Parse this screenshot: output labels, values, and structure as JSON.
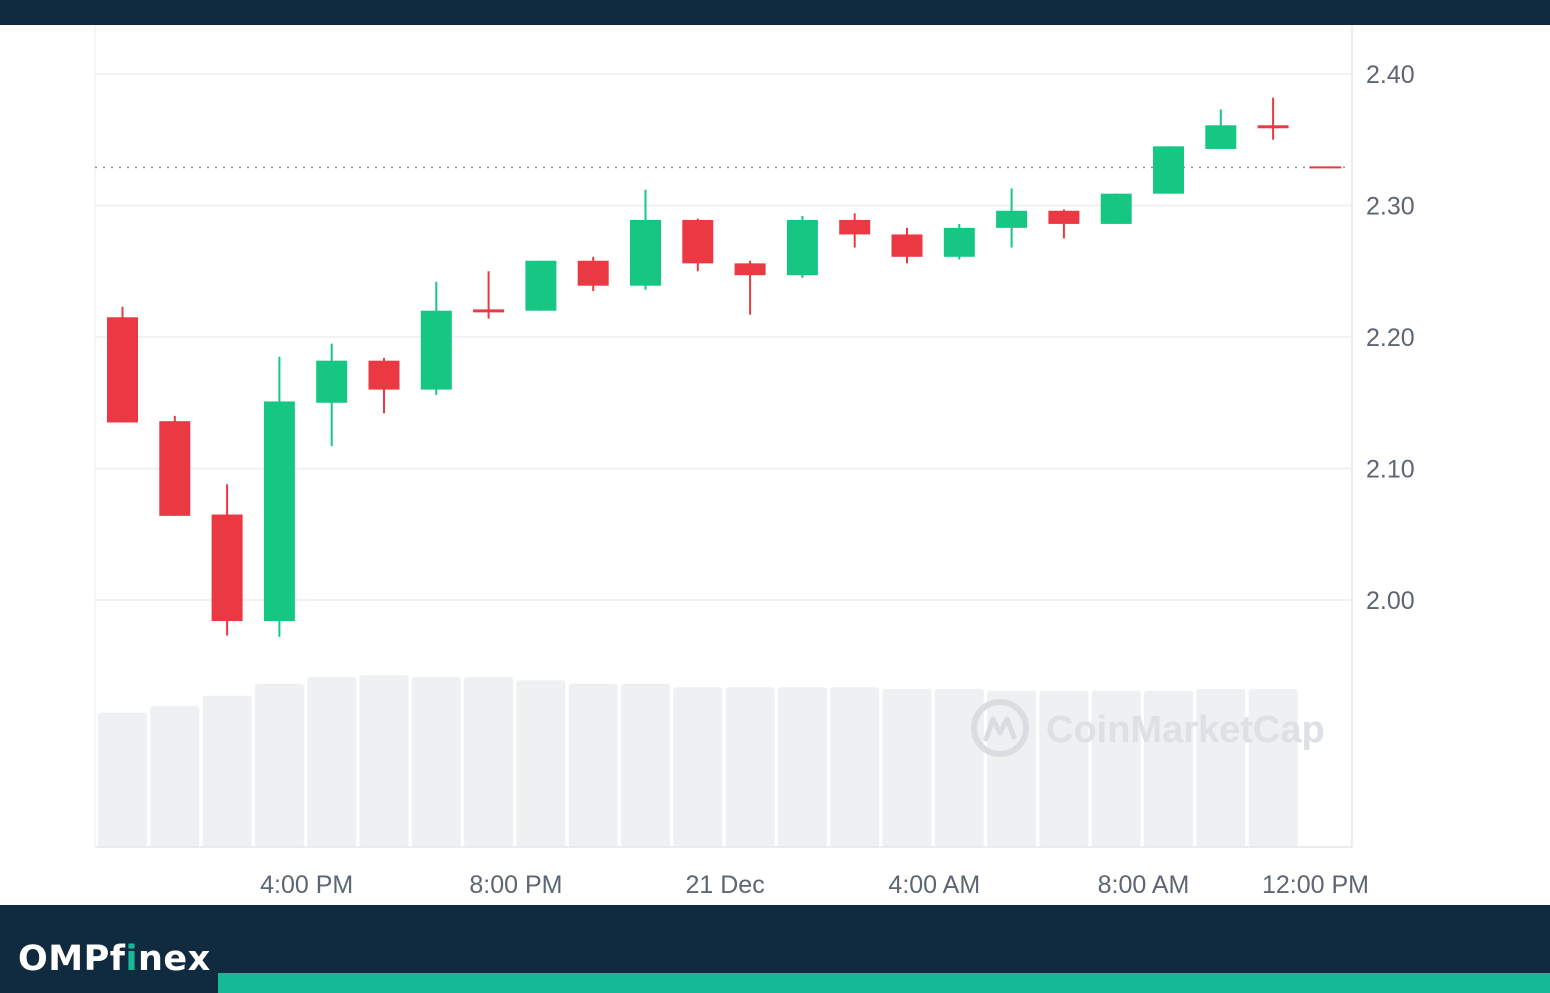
{
  "brand": {
    "prefix": "OMPf",
    "accent": "i",
    "suffix": "nex",
    "accent_color": "#16b997",
    "bar_color": "#102a40"
  },
  "watermark": {
    "text": "CoinMarketCap",
    "icon": "coinmarketcap-logo-icon"
  },
  "chart_data": {
    "type": "candlestick",
    "title": "",
    "ylim": [
      1.8,
      2.44
    ],
    "y_ticks": [
      2.0,
      2.1,
      2.2,
      2.3,
      2.4
    ],
    "y_tick_labels": [
      "2.00",
      "2.10",
      "2.20",
      "2.30",
      "2.40"
    ],
    "x_tick_labels": [
      "4:00 PM",
      "8:00 PM",
      "21 Dec",
      "4:00 AM",
      "8:00 AM",
      "12:00 PM"
    ],
    "x_tick_candle_index": [
      4,
      8,
      12,
      16,
      20,
      24
    ],
    "current_price_line": 2.329,
    "grid": true,
    "up_color": "#16c784",
    "down_color": "#ea3943",
    "volume_color": "#eef0f1",
    "candles": [
      {
        "open": 2.215,
        "high": 2.223,
        "low": 2.135,
        "close": 2.135
      },
      {
        "open": 2.136,
        "high": 2.14,
        "low": 2.064,
        "close": 2.064
      },
      {
        "open": 2.065,
        "high": 2.088,
        "low": 1.973,
        "close": 1.984
      },
      {
        "open": 1.984,
        "high": 2.185,
        "low": 1.972,
        "close": 2.151
      },
      {
        "open": 2.15,
        "high": 2.195,
        "low": 2.117,
        "close": 2.182
      },
      {
        "open": 2.182,
        "high": 2.184,
        "low": 2.142,
        "close": 2.16
      },
      {
        "open": 2.16,
        "high": 2.242,
        "low": 2.156,
        "close": 2.22
      },
      {
        "open": 2.221,
        "high": 2.25,
        "low": 2.214,
        "close": 2.219
      },
      {
        "open": 2.22,
        "high": 2.258,
        "low": 2.22,
        "close": 2.258
      },
      {
        "open": 2.258,
        "high": 2.261,
        "low": 2.235,
        "close": 2.239
      },
      {
        "open": 2.239,
        "high": 2.312,
        "low": 2.236,
        "close": 2.289
      },
      {
        "open": 2.289,
        "high": 2.29,
        "low": 2.25,
        "close": 2.256
      },
      {
        "open": 2.256,
        "high": 2.258,
        "low": 2.217,
        "close": 2.247
      },
      {
        "open": 2.247,
        "high": 2.292,
        "low": 2.245,
        "close": 2.289
      },
      {
        "open": 2.289,
        "high": 2.294,
        "low": 2.268,
        "close": 2.278
      },
      {
        "open": 2.278,
        "high": 2.283,
        "low": 2.256,
        "close": 2.261
      },
      {
        "open": 2.261,
        "high": 2.286,
        "low": 2.259,
        "close": 2.283
      },
      {
        "open": 2.283,
        "high": 2.313,
        "low": 2.268,
        "close": 2.296
      },
      {
        "open": 2.296,
        "high": 2.297,
        "low": 2.275,
        "close": 2.286
      },
      {
        "open": 2.286,
        "high": 2.309,
        "low": 2.286,
        "close": 2.309
      },
      {
        "open": 2.309,
        "high": 2.345,
        "low": 2.309,
        "close": 2.345
      },
      {
        "open": 2.343,
        "high": 2.373,
        "low": 2.343,
        "close": 2.361
      },
      {
        "open": 2.361,
        "high": 2.382,
        "low": 2.35,
        "close": 2.359
      },
      {
        "open": 2.329,
        "high": 2.33,
        "low": 2.328,
        "close": 2.329
      }
    ],
    "volume_relative": [
      0.79,
      0.83,
      0.89,
      0.96,
      1.0,
      1.01,
      1.0,
      1.0,
      0.98,
      0.96,
      0.96,
      0.94,
      0.94,
      0.94,
      0.94,
      0.93,
      0.93,
      0.92,
      0.92,
      0.92,
      0.92,
      0.93,
      0.93
    ]
  }
}
